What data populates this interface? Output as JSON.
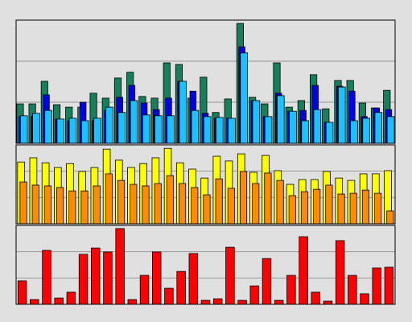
{
  "chart_data": [
    {
      "type": "bar",
      "ylim": [
        0,
        30
      ],
      "yticks": [
        0,
        10,
        20,
        30
      ],
      "grid": true,
      "series": [
        {
          "color": "#16805c",
          "values": [
            9.6,
            9.6,
            15.1,
            9.4,
            8.8,
            8.8,
            12.2,
            11,
            15.9,
            17.3,
            11.4,
            11,
            19.6,
            19.2,
            11,
            16.1,
            7.5,
            10.8,
            29.2,
            11.2,
            9.6,
            19.6,
            8.8,
            10.4,
            16.7,
            8.4,
            15.3,
            15.3,
            9.8,
            8.6,
            12.9
          ]
        },
        {
          "color": "#0000e0",
          "values": [
            6.5,
            6.5,
            11.8,
            5.9,
            5.5,
            10,
            5.5,
            8,
            11.2,
            14.1,
            9.8,
            8.2,
            11,
            15.1,
            12.7,
            7.3,
            6.1,
            6.1,
            23.5,
            10.4,
            6.5,
            12.2,
            7.8,
            8,
            14.1,
            5.1,
            13.9,
            12.7,
            6.5,
            8.6,
            8.2
          ]
        },
        {
          "color": "#1ec0ff",
          "values": [
            6.7,
            7.3,
            8,
            5.9,
            6.1,
            5.5,
            6.1,
            8.8,
            7.5,
            10.4,
            6.9,
            6.7,
            6.7,
            15.1,
            8,
            6.5,
            6.3,
            6.1,
            22,
            10.4,
            6.5,
            11.6,
            7.8,
            5.5,
            8.2,
            5.1,
            13.7,
            5.5,
            6.1,
            7.5,
            6.5
          ]
        }
      ]
    },
    {
      "type": "bar",
      "ylim": [
        0,
        30
      ],
      "yticks": [
        0,
        10,
        20,
        30
      ],
      "grid": true,
      "series": [
        {
          "color": "#ffff00",
          "values": [
            23.5,
            25.1,
            23.2,
            21.4,
            22.9,
            19.9,
            21.4,
            28.4,
            24.2,
            21.4,
            22.9,
            25.1,
            28.7,
            23.2,
            20.8,
            17.4,
            25.7,
            23.9,
            26.6,
            19.6,
            26,
            20.2,
            15,
            16.8,
            16.8,
            19.9,
            17.4,
            16.5,
            19,
            19,
            20.2
          ]
        },
        {
          "color": "#ff8c00",
          "values": [
            15.9,
            14.7,
            14.4,
            13.8,
            12.5,
            12.5,
            14.4,
            19,
            16.5,
            15,
            14.4,
            15.3,
            18.3,
            15.3,
            13.8,
            11,
            17.1,
            13.5,
            19.9,
            15.3,
            19.3,
            16.5,
            10.7,
            12.2,
            13.1,
            14.7,
            11.3,
            11.6,
            12.8,
            11.6,
            4.9
          ]
        }
      ]
    },
    {
      "type": "bar",
      "ylim": [
        0,
        30
      ],
      "yticks": [
        0,
        10,
        20,
        30
      ],
      "grid": true,
      "series": [
        {
          "color": "#ff0000",
          "values": [
            8.9,
            1.8,
            20.5,
            2.4,
            4.6,
            19,
            21.4,
            19.9,
            28.8,
            1.8,
            11,
            19.9,
            6.1,
            12.5,
            19.3,
            1.5,
            2.1,
            21.7,
            1.5,
            7,
            17.4,
            1.5,
            11,
            25.7,
            4.6,
            1.2,
            24.2,
            11,
            4,
            13.8,
            14.1
          ]
        }
      ]
    }
  ]
}
